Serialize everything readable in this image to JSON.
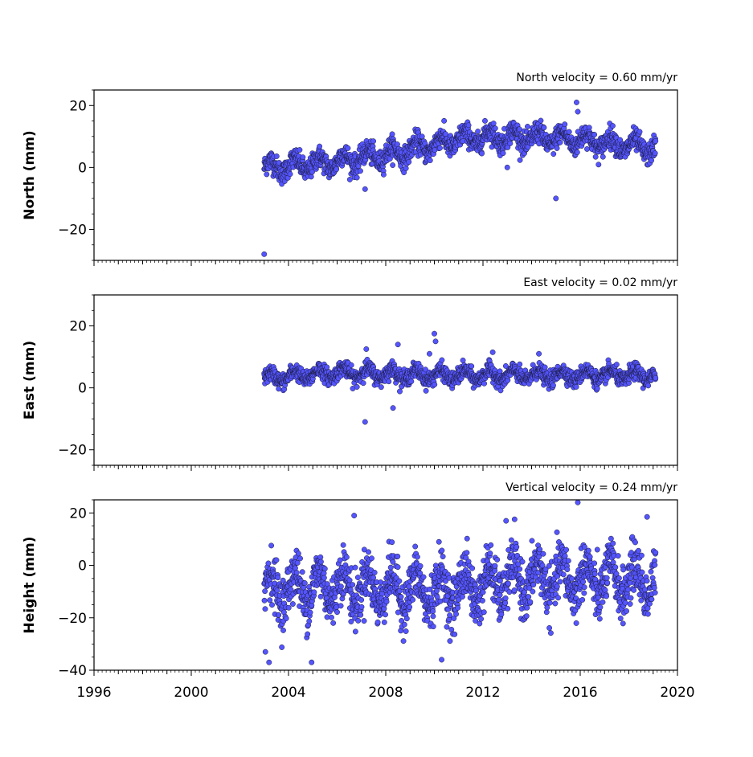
{
  "figure": {
    "xticklabels": [
      "1996",
      "2000",
      "2004",
      "2008",
      "2012",
      "2016",
      "2020"
    ]
  },
  "chart_data": [
    {
      "type": "scatter",
      "title": "North velocity = 0.60 mm/yr",
      "xlabel": "",
      "ylabel": "North (mm)",
      "xlim": [
        1996,
        2020
      ],
      "ylim": [
        -30,
        25
      ],
      "yticks": [
        -20,
        0,
        20
      ],
      "yticklabels": [
        "−20",
        "0",
        "20"
      ],
      "grid": false,
      "marker_color": "#5555ff",
      "data_start": 2003.0,
      "data_end": 2019.1,
      "trend_points": {
        "x": [
          2003.0,
          2005.0,
          2008.0,
          2011.0,
          2012.5,
          2016.0,
          2019.1
        ],
        "y": [
          0,
          1,
          4,
          9,
          10,
          9,
          6
        ]
      },
      "scatter_amplitude": 2.5,
      "outliers": {
        "x": [
          2003.0,
          2007.15,
          2013.0,
          2015.0,
          2015.85,
          2015.9
        ],
        "y": [
          -28,
          -7,
          0,
          -10,
          21,
          18
        ]
      }
    },
    {
      "type": "scatter",
      "title": "East velocity = 0.02 mm/yr",
      "xlabel": "",
      "ylabel": "East (mm)",
      "xlim": [
        1996,
        2020
      ],
      "ylim": [
        -25,
        30
      ],
      "yticks": [
        -20,
        0,
        20
      ],
      "yticklabels": [
        "−20",
        "0",
        "20"
      ],
      "grid": false,
      "marker_color": "#5555ff",
      "data_start": 2003.0,
      "data_end": 2019.1,
      "trend_points": {
        "x": [
          2003.0,
          2006.0,
          2010.0,
          2014.0,
          2019.1
        ],
        "y": [
          3,
          5,
          4,
          4,
          4
        ]
      },
      "scatter_amplitude": 1.8,
      "outliers": {
        "x": [
          2007.15,
          2007.2,
          2008.5,
          2009.8,
          2010.0,
          2010.05,
          2012.4,
          2014.3,
          2008.3
        ],
        "y": [
          -11,
          12.5,
          14,
          11,
          17.5,
          15,
          11.5,
          11,
          -6.5
        ]
      }
    },
    {
      "type": "scatter",
      "title": "Vertical velocity = 0.24 mm/yr",
      "xlabel": "",
      "ylabel": "Height (mm)",
      "xlim": [
        1996,
        2020
      ],
      "ylim": [
        -40,
        25
      ],
      "yticks": [
        -40,
        -20,
        0,
        20
      ],
      "yticklabels": [
        "−40",
        "−20",
        "0",
        "20"
      ],
      "grid": false,
      "marker_color": "#5555ff",
      "data_start": 2003.0,
      "data_end": 2019.1,
      "trend_points": {
        "x": [
          2003.0,
          2006.0,
          2010.0,
          2014.0,
          2019.1
        ],
        "y": [
          -9,
          -8,
          -10,
          -5,
          -6
        ]
      },
      "scatter_amplitude": 7,
      "outliers": {
        "x": [
          2006.7,
          2003.2,
          2004.95,
          2010.3,
          2012.95,
          2015.9,
          2018.75,
          2003.05
        ],
        "y": [
          19,
          -37,
          -37,
          -36,
          17,
          24,
          18.5,
          -33
        ]
      }
    }
  ]
}
